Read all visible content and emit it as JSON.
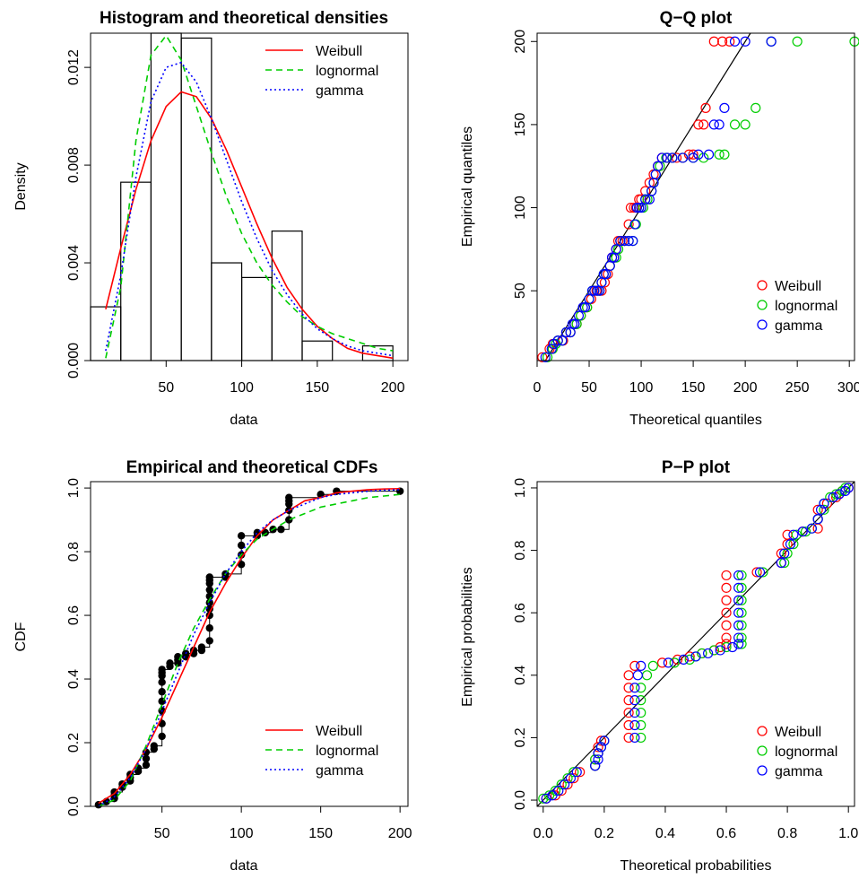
{
  "page": {
    "background": "#ffffff",
    "colors": {
      "weibull": "#ff0000",
      "lognormal": "#00cd00",
      "gamma": "#0000ff",
      "axis": "#000000"
    }
  },
  "chart_data": [
    {
      "type": "histogram",
      "title": "Histogram and theoretical densities",
      "xlabel": "data",
      "ylabel": "Density",
      "xlim": [
        0,
        210
      ],
      "ylim": [
        0,
        0.0134
      ],
      "xticks": [
        50,
        100,
        150,
        200
      ],
      "yticks": [
        0.0,
        0.004,
        0.008,
        0.012
      ],
      "ytick_labels": [
        "0.000",
        "0.004",
        "0.008",
        "0.012"
      ],
      "grid": false,
      "legend": {
        "position": "top-right",
        "style": "line",
        "entries": [
          "Weibull",
          "lognormal",
          "gamma"
        ]
      },
      "bins": [
        {
          "from": 0,
          "to": 20,
          "density": 0.0022
        },
        {
          "from": 20,
          "to": 40,
          "density": 0.0073
        },
        {
          "from": 40,
          "to": 60,
          "density": 0.0134
        },
        {
          "from": 60,
          "to": 80,
          "density": 0.0132
        },
        {
          "from": 80,
          "to": 100,
          "density": 0.004
        },
        {
          "from": 100,
          "to": 120,
          "density": 0.0034
        },
        {
          "from": 120,
          "to": 140,
          "density": 0.0053
        },
        {
          "from": 140,
          "to": 160,
          "density": 0.0008
        },
        {
          "from": 160,
          "to": 180,
          "density": 0.0
        },
        {
          "from": 180,
          "to": 200,
          "density": 0.0006
        }
      ],
      "series": [
        {
          "name": "Weibull",
          "style": "solid",
          "color": "#ff0000",
          "x": [
            10,
            20,
            30,
            40,
            50,
            60,
            70,
            80,
            90,
            100,
            110,
            120,
            130,
            140,
            150,
            160,
            170,
            180,
            190,
            200
          ],
          "y": [
            0.0021,
            0.0046,
            0.007,
            0.009,
            0.0104,
            0.011,
            0.0108,
            0.0099,
            0.0086,
            0.0071,
            0.0056,
            0.0042,
            0.003,
            0.0021,
            0.0014,
            0.0009,
            0.0005,
            0.0003,
            0.0002,
            0.0001
          ]
        },
        {
          "name": "lognormal",
          "style": "dashed",
          "color": "#00cd00",
          "x": [
            10,
            20,
            30,
            40,
            50,
            60,
            70,
            80,
            90,
            100,
            110,
            120,
            130,
            140,
            150,
            160,
            170,
            180,
            190,
            200
          ],
          "y": [
            0.0001,
            0.003,
            0.009,
            0.0125,
            0.0133,
            0.0123,
            0.0104,
            0.0085,
            0.0067,
            0.0052,
            0.004,
            0.0031,
            0.0024,
            0.0018,
            0.0014,
            0.0011,
            0.0009,
            0.0007,
            0.0005,
            0.0004
          ]
        },
        {
          "name": "gamma",
          "style": "dotted",
          "color": "#0000ff",
          "x": [
            10,
            20,
            30,
            40,
            50,
            60,
            70,
            80,
            90,
            100,
            110,
            120,
            130,
            140,
            150,
            160,
            170,
            180,
            190,
            200
          ],
          "y": [
            0.0004,
            0.0035,
            0.0075,
            0.0106,
            0.012,
            0.0122,
            0.0114,
            0.0099,
            0.0082,
            0.0065,
            0.005,
            0.0037,
            0.0027,
            0.0019,
            0.0013,
            0.0009,
            0.0006,
            0.0004,
            0.0003,
            0.0002
          ]
        }
      ]
    },
    {
      "type": "scatter",
      "title": "Q−Q plot",
      "xlabel": "Theoretical quantiles",
      "ylabel": "Empirical quantiles",
      "xlim": [
        0,
        305
      ],
      "ylim": [
        8,
        205
      ],
      "xticks": [
        0,
        50,
        100,
        150,
        200,
        250,
        300
      ],
      "yticks": [
        50,
        100,
        150,
        200
      ],
      "grid": false,
      "reference_line": "y = x",
      "legend": {
        "position": "bottom-right",
        "style": "point",
        "entries": [
          "Weibull",
          "lognormal",
          "gamma"
        ]
      },
      "y": [
        10,
        15,
        18,
        20,
        20,
        25,
        25,
        30,
        30,
        35,
        40,
        40,
        45,
        50,
        50,
        50,
        50,
        55,
        60,
        60,
        65,
        70,
        70,
        75,
        80,
        80,
        80,
        80,
        90,
        100,
        100,
        100,
        105,
        105,
        110,
        115,
        120,
        125,
        130,
        130,
        130,
        130,
        130,
        132,
        132,
        150,
        150,
        160,
        200,
        200,
        200
      ],
      "series": [
        {
          "name": "Weibull",
          "color": "#ff0000",
          "x": [
            5,
            12,
            15,
            20,
            25,
            28,
            32,
            36,
            38,
            42,
            46,
            48,
            52,
            55,
            57,
            60,
            62,
            65,
            66,
            68,
            70,
            72,
            74,
            76,
            78,
            80,
            82,
            84,
            88,
            90,
            93,
            95,
            98,
            100,
            104,
            108,
            112,
            116,
            120,
            125,
            130,
            134,
            140,
            146,
            150,
            155,
            160,
            162,
            170,
            178,
            185
          ]
        },
        {
          "name": "lognormal",
          "color": "#00cd00",
          "x": [
            10,
            15,
            18,
            20,
            24,
            28,
            32,
            36,
            38,
            42,
            46,
            48,
            50,
            53,
            55,
            58,
            60,
            62,
            64,
            66,
            70,
            74,
            76,
            78,
            80,
            84,
            88,
            92,
            95,
            98,
            100,
            102,
            104,
            106,
            110,
            112,
            114,
            118,
            124,
            130,
            140,
            150,
            160,
            175,
            180,
            190,
            200,
            210,
            225,
            250,
            305
          ]
        },
        {
          "name": "gamma",
          "color": "#0000ff",
          "x": [
            8,
            14,
            16,
            20,
            24,
            28,
            32,
            34,
            36,
            40,
            44,
            46,
            50,
            53,
            55,
            58,
            60,
            62,
            64,
            66,
            70,
            72,
            74,
            76,
            80,
            84,
            88,
            92,
            94,
            96,
            98,
            100,
            104,
            108,
            110,
            112,
            114,
            116,
            120,
            125,
            130,
            140,
            150,
            155,
            165,
            170,
            175,
            180,
            190,
            200,
            225
          ]
        }
      ]
    },
    {
      "type": "line",
      "title": "Empirical and theoretical CDFs",
      "xlabel": "data",
      "ylabel": "CDF",
      "xlim": [
        5,
        205
      ],
      "ylim": [
        0,
        1.02
      ],
      "xticks": [
        50,
        100,
        150,
        200
      ],
      "yticks": [
        0.0,
        0.2,
        0.4,
        0.6,
        0.8,
        1.0
      ],
      "ytick_labels": [
        "0.0",
        "0.2",
        "0.4",
        "0.6",
        "0.8",
        "1.0"
      ],
      "grid": false,
      "legend": {
        "position": "bottom-right",
        "style": "line",
        "entries": [
          "Weibull",
          "lognormal",
          "gamma"
        ]
      },
      "empirical": {
        "x": [
          10,
          15,
          20,
          20,
          20,
          25,
          25,
          30,
          30,
          30,
          35,
          35,
          40,
          40,
          40,
          45,
          45,
          50,
          50,
          50,
          50,
          50,
          50,
          50,
          50,
          50,
          55,
          55,
          60,
          60,
          60,
          65,
          65,
          65,
          70,
          70,
          75,
          75,
          80,
          80,
          80,
          80,
          80,
          80,
          80,
          80,
          80,
          80,
          90,
          90,
          100,
          100,
          100,
          100,
          110,
          110,
          115,
          115,
          120,
          125,
          130,
          130,
          130,
          130,
          130,
          150,
          160,
          200
        ],
        "y": [
          0.005,
          0.015,
          0.025,
          0.035,
          0.045,
          0.06,
          0.07,
          0.08,
          0.09,
          0.1,
          0.11,
          0.12,
          0.13,
          0.15,
          0.17,
          0.18,
          0.19,
          0.22,
          0.26,
          0.3,
          0.33,
          0.36,
          0.39,
          0.41,
          0.42,
          0.43,
          0.44,
          0.45,
          0.45,
          0.46,
          0.47,
          0.47,
          0.47,
          0.48,
          0.48,
          0.49,
          0.49,
          0.5,
          0.52,
          0.56,
          0.6,
          0.62,
          0.64,
          0.66,
          0.68,
          0.7,
          0.71,
          0.72,
          0.72,
          0.73,
          0.76,
          0.79,
          0.82,
          0.85,
          0.85,
          0.86,
          0.86,
          0.86,
          0.87,
          0.87,
          0.9,
          0.93,
          0.95,
          0.96,
          0.97,
          0.98,
          0.99,
          0.99
        ]
      },
      "series": [
        {
          "name": "Weibull",
          "style": "solid",
          "color": "#ff0000",
          "x": [
            10,
            20,
            30,
            40,
            50,
            60,
            70,
            80,
            90,
            100,
            110,
            120,
            130,
            140,
            150,
            160,
            170,
            180,
            190,
            200
          ],
          "y": [
            0.01,
            0.04,
            0.1,
            0.18,
            0.28,
            0.39,
            0.5,
            0.61,
            0.7,
            0.78,
            0.85,
            0.9,
            0.93,
            0.96,
            0.97,
            0.985,
            0.99,
            0.995,
            0.997,
            0.998
          ]
        },
        {
          "name": "lognormal",
          "style": "dashed",
          "color": "#00cd00",
          "x": [
            10,
            20,
            30,
            40,
            50,
            60,
            70,
            80,
            90,
            100,
            110,
            120,
            130,
            140,
            150,
            160,
            170,
            180,
            190,
            200
          ],
          "y": [
            0.0,
            0.02,
            0.08,
            0.19,
            0.32,
            0.45,
            0.56,
            0.65,
            0.73,
            0.79,
            0.84,
            0.87,
            0.9,
            0.92,
            0.94,
            0.95,
            0.96,
            0.97,
            0.975,
            0.98
          ]
        },
        {
          "name": "gamma",
          "style": "dotted",
          "color": "#0000ff",
          "x": [
            10,
            20,
            30,
            40,
            50,
            60,
            70,
            80,
            90,
            100,
            110,
            120,
            130,
            140,
            150,
            160,
            170,
            180,
            190,
            200
          ],
          "y": [
            0.0,
            0.03,
            0.09,
            0.18,
            0.3,
            0.42,
            0.54,
            0.64,
            0.73,
            0.8,
            0.86,
            0.9,
            0.93,
            0.95,
            0.97,
            0.98,
            0.985,
            0.99,
            0.993,
            0.995
          ]
        }
      ]
    },
    {
      "type": "scatter",
      "title": "P−P plot",
      "xlabel": "Theoretical probabilities",
      "ylabel": "Empirical probabilities",
      "xlim": [
        -0.02,
        1.02
      ],
      "ylim": [
        -0.02,
        1.02
      ],
      "xticks": [
        0.0,
        0.2,
        0.4,
        0.6,
        0.8,
        1.0
      ],
      "yticks": [
        0.0,
        0.2,
        0.4,
        0.6,
        0.8,
        1.0
      ],
      "xtick_labels": [
        "0.0",
        "0.2",
        "0.4",
        "0.6",
        "0.8",
        "1.0"
      ],
      "ytick_labels": [
        "0.0",
        "0.2",
        "0.4",
        "0.6",
        "0.8",
        "1.0"
      ],
      "grid": false,
      "reference_line": "y = x",
      "legend": {
        "position": "bottom-right",
        "style": "point",
        "entries": [
          "Weibull",
          "lognormal",
          "gamma"
        ]
      },
      "y": [
        0.005,
        0.015,
        0.03,
        0.05,
        0.07,
        0.09,
        0.11,
        0.13,
        0.15,
        0.17,
        0.19,
        0.2,
        0.24,
        0.28,
        0.32,
        0.36,
        0.4,
        0.43,
        0.44,
        0.45,
        0.46,
        0.47,
        0.48,
        0.49,
        0.5,
        0.52,
        0.56,
        0.6,
        0.64,
        0.68,
        0.72,
        0.73,
        0.76,
        0.79,
        0.82,
        0.85,
        0.86,
        0.87,
        0.9,
        0.93,
        0.95,
        0.97,
        0.98,
        0.99,
        1.0
      ],
      "series": [
        {
          "name": "Weibull",
          "color": "#ff0000",
          "x": [
            0.01,
            0.04,
            0.06,
            0.08,
            0.1,
            0.12,
            0.17,
            0.17,
            0.18,
            0.18,
            0.19,
            0.28,
            0.28,
            0.28,
            0.28,
            0.28,
            0.28,
            0.3,
            0.39,
            0.44,
            0.48,
            0.52,
            0.56,
            0.58,
            0.6,
            0.6,
            0.6,
            0.6,
            0.6,
            0.6,
            0.6,
            0.7,
            0.78,
            0.78,
            0.8,
            0.8,
            0.85,
            0.9,
            0.9,
            0.9,
            0.93,
            0.96,
            0.97,
            0.98,
            1.0
          ]
        },
        {
          "name": "lognormal",
          "color": "#00cd00",
          "x": [
            0.0,
            0.02,
            0.04,
            0.06,
            0.08,
            0.1,
            0.17,
            0.17,
            0.18,
            0.19,
            0.2,
            0.32,
            0.32,
            0.32,
            0.32,
            0.32,
            0.34,
            0.36,
            0.43,
            0.48,
            0.5,
            0.52,
            0.56,
            0.6,
            0.65,
            0.65,
            0.65,
            0.65,
            0.65,
            0.65,
            0.65,
            0.72,
            0.79,
            0.8,
            0.82,
            0.83,
            0.86,
            0.88,
            0.9,
            0.92,
            0.92,
            0.94,
            0.96,
            0.98,
            0.99
          ]
        },
        {
          "name": "gamma",
          "color": "#0000ff",
          "x": [
            0.01,
            0.03,
            0.05,
            0.07,
            0.09,
            0.11,
            0.17,
            0.18,
            0.18,
            0.19,
            0.2,
            0.3,
            0.3,
            0.3,
            0.3,
            0.3,
            0.31,
            0.32,
            0.41,
            0.46,
            0.5,
            0.54,
            0.58,
            0.62,
            0.64,
            0.64,
            0.64,
            0.64,
            0.64,
            0.64,
            0.64,
            0.71,
            0.78,
            0.79,
            0.81,
            0.82,
            0.85,
            0.88,
            0.9,
            0.91,
            0.92,
            0.95,
            0.97,
            0.99,
            1.0
          ]
        }
      ]
    }
  ]
}
